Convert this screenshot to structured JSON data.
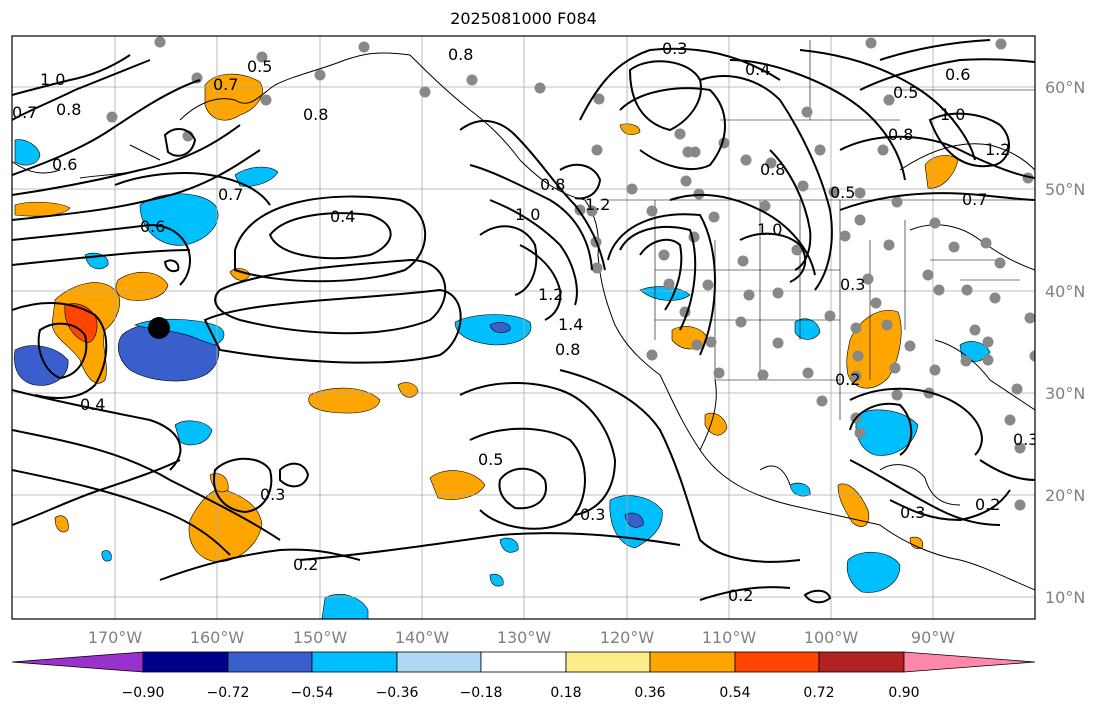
{
  "title": "2025081000 F084",
  "map": {
    "lat_ticks": [
      "60°N",
      "50°N",
      "40°N",
      "30°N",
      "20°N",
      "10°N"
    ],
    "lon_ticks": [
      "170°W",
      "160°W",
      "150°W",
      "140°W",
      "130°W",
      "120°W",
      "110°W",
      "100°W",
      "90°W"
    ],
    "contour_labels": [
      "1.0",
      "0.8",
      "0.7",
      "0.6",
      "0.5",
      "0.7",
      "0.8",
      "0.6",
      "0.7",
      "0.4",
      "0.4",
      "0.8",
      "0.3",
      "0.4",
      "0.6",
      "0.5",
      "1.0",
      "1.2",
      "0.8",
      "0.7",
      "0.8",
      "1.0",
      "1.2",
      "0.8",
      "1.0",
      "1.2",
      "1.4",
      "0.8",
      "0.5",
      "0.3",
      "0.5",
      "0.3",
      "0.2",
      "0.2",
      "0.3",
      "0.2",
      "0.3",
      "0.2",
      "0.3"
    ]
  },
  "colorbar": {
    "tick_labels": [
      "−0.90",
      "−0.72",
      "−0.54",
      "−0.36",
      "−0.18",
      "0.18",
      "0.36",
      "0.54",
      "0.72",
      "0.90"
    ],
    "colors": [
      "#9932cc",
      "#00008b",
      "#3a5fcd",
      "#00bfff",
      "#add8f6",
      "#ffffff",
      "#fdec8a",
      "#ffa500",
      "#ff4500",
      "#b22222",
      "#ff88aa"
    ]
  }
}
